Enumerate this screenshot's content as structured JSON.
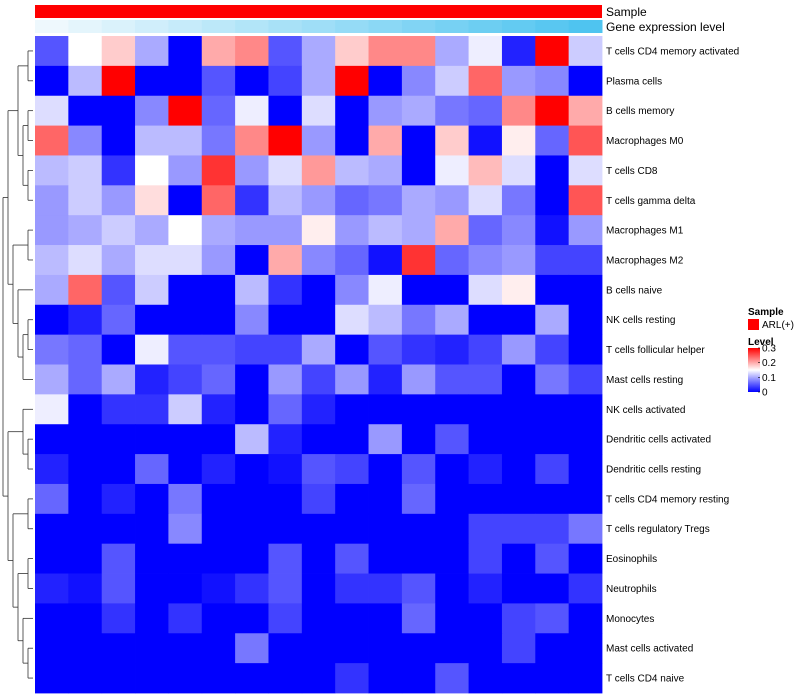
{
  "chart_data": {
    "type": "heatmap",
    "annotation_labels": [
      "Sample",
      "Gene expression level"
    ],
    "sample_annotation_color": "#ff0000",
    "expression_gradient_colors": [
      "#eef8fd",
      "#4fc4f0"
    ],
    "rows": [
      "T cells CD4 memory activated",
      "Plasma cells",
      "B cells memory",
      "Macrophages M0",
      "T cells CD8",
      "T cells gamma delta",
      "Macrophages M1",
      "Macrophages M2",
      "B cells naive",
      "NK cells resting",
      "T cells follicular helper",
      "Mast cells resting",
      "NK cells activated",
      "Dendritic cells activated",
      "Dendritic cells resting",
      "T cells CD4 memory resting",
      "T cells regulatory  Tregs",
      "Eosinophils",
      "Neutrophils",
      "Monocytes",
      "Mast cells activated",
      "T cells CD4 naive"
    ],
    "values": [
      [
        0.05,
        0.15,
        0.18,
        0.1,
        0.0,
        0.2,
        0.22,
        0.05,
        0.1,
        0.18,
        0.22,
        0.22,
        0.1,
        0.14,
        0.02,
        0.3,
        0.12
      ],
      [
        0.0,
        0.11,
        0.3,
        0.0,
        0.0,
        0.05,
        0.0,
        0.04,
        0.1,
        0.3,
        0.0,
        0.08,
        0.12,
        0.24,
        0.09,
        0.08,
        0.0
      ],
      [
        0.13,
        0.0,
        0.0,
        0.08,
        0.3,
        0.06,
        0.14,
        0.0,
        0.13,
        0.0,
        0.09,
        0.1,
        0.07,
        0.06,
        0.22,
        0.3,
        0.2
      ],
      [
        0.24,
        0.08,
        0.0,
        0.11,
        0.11,
        0.07,
        0.22,
        0.3,
        0.09,
        0.0,
        0.2,
        0.0,
        0.18,
        0.01,
        0.16,
        0.06,
        0.25
      ],
      [
        0.11,
        0.12,
        0.03,
        0.15,
        0.09,
        0.27,
        0.09,
        0.13,
        0.21,
        0.11,
        0.1,
        0.0,
        0.14,
        0.19,
        0.13,
        0.0,
        0.13
      ],
      [
        0.09,
        0.12,
        0.09,
        0.17,
        0.0,
        0.24,
        0.03,
        0.11,
        0.09,
        0.06,
        0.07,
        0.1,
        0.09,
        0.13,
        0.07,
        0.0,
        0.25
      ],
      [
        0.09,
        0.1,
        0.12,
        0.1,
        0.15,
        0.1,
        0.09,
        0.09,
        0.16,
        0.09,
        0.11,
        0.1,
        0.2,
        0.06,
        0.08,
        0.01,
        0.09
      ],
      [
        0.11,
        0.13,
        0.1,
        0.13,
        0.13,
        0.09,
        0.0,
        0.2,
        0.08,
        0.06,
        0.01,
        0.27,
        0.06,
        0.08,
        0.09,
        0.04,
        0.04
      ],
      [
        0.1,
        0.24,
        0.05,
        0.12,
        0.0,
        0.0,
        0.11,
        0.03,
        0.0,
        0.08,
        0.14,
        0.0,
        0.0,
        0.13,
        0.16,
        0.0,
        0.0
      ],
      [
        0.0,
        0.02,
        0.06,
        0.0,
        0.0,
        0.0,
        0.08,
        0.0,
        0.0,
        0.13,
        0.11,
        0.07,
        0.1,
        0.0,
        0.0,
        0.1,
        0.0
      ],
      [
        0.07,
        0.06,
        0.0,
        0.14,
        0.05,
        0.05,
        0.04,
        0.04,
        0.1,
        0.0,
        0.05,
        0.03,
        0.02,
        0.04,
        0.09,
        0.04,
        0.0
      ],
      [
        0.1,
        0.06,
        0.1,
        0.02,
        0.04,
        0.06,
        0.0,
        0.09,
        0.04,
        0.09,
        0.02,
        0.09,
        0.05,
        0.05,
        0.0,
        0.07,
        0.04
      ],
      [
        0.14,
        0.0,
        0.03,
        0.03,
        0.12,
        0.02,
        0.0,
        0.06,
        0.02,
        0.0,
        0.0,
        0.0,
        0.0,
        0.0,
        0.0,
        0.0,
        0.0
      ],
      [
        0.0,
        0.0,
        0.0,
        0.0,
        0.0,
        0.0,
        0.11,
        0.02,
        0.0,
        0.0,
        0.09,
        0.0,
        0.05,
        0.0,
        0.0,
        0.0,
        0.0
      ],
      [
        0.02,
        0.0,
        0.0,
        0.06,
        0.0,
        0.02,
        0.0,
        0.01,
        0.05,
        0.04,
        0.0,
        0.05,
        0.0,
        0.02,
        0.0,
        0.04,
        0.0
      ],
      [
        0.06,
        0.0,
        0.02,
        0.0,
        0.07,
        0.0,
        0.0,
        0.0,
        0.04,
        0.0,
        0.0,
        0.06,
        0.0,
        0.0,
        0.0,
        0.0,
        0.0
      ],
      [
        0.0,
        0.0,
        0.0,
        0.0,
        0.08,
        0.0,
        0.0,
        0.0,
        0.0,
        0.0,
        0.0,
        0.0,
        0.0,
        0.04,
        0.04,
        0.04,
        0.07
      ],
      [
        0.0,
        0.0,
        0.05,
        0.0,
        0.0,
        0.0,
        0.0,
        0.05,
        0.0,
        0.05,
        0.0,
        0.0,
        0.0,
        0.04,
        0.0,
        0.05,
        0.0
      ],
      [
        0.02,
        0.01,
        0.05,
        0.0,
        0.0,
        0.01,
        0.03,
        0.05,
        0.0,
        0.03,
        0.03,
        0.05,
        0.0,
        0.02,
        0.0,
        0.0,
        0.03
      ],
      [
        0.0,
        0.0,
        0.03,
        0.0,
        0.03,
        0.0,
        0.0,
        0.04,
        0.0,
        0.0,
        0.0,
        0.06,
        0.0,
        0.0,
        0.04,
        0.05,
        0.0
      ],
      [
        0.0,
        0.0,
        0.0,
        0.0,
        0.0,
        0.0,
        0.07,
        0.0,
        0.0,
        0.0,
        0.0,
        0.0,
        0.0,
        0.0,
        0.04,
        0.0,
        0.0
      ],
      [
        0.0,
        0.0,
        0.0,
        0.0,
        0.0,
        0.0,
        0.0,
        0.0,
        0.0,
        0.03,
        0.0,
        0.0,
        0.05,
        0.0,
        0.0,
        0.0,
        0.0
      ]
    ],
    "color_scale": {
      "min": 0,
      "max": 0.3,
      "low": "#0000ff",
      "mid": "#ffffff",
      "high": "#ff0000",
      "mid_value": 0.15
    },
    "legend": {
      "sample_title": "Sample",
      "sample_entries": [
        {
          "label": "ARL(+)",
          "color": "#ff0000"
        }
      ],
      "level_title": "Level",
      "level_ticks": [
        0.3,
        0.2,
        0.1,
        0
      ],
      "position": "right"
    },
    "dendrogram": "rows"
  }
}
